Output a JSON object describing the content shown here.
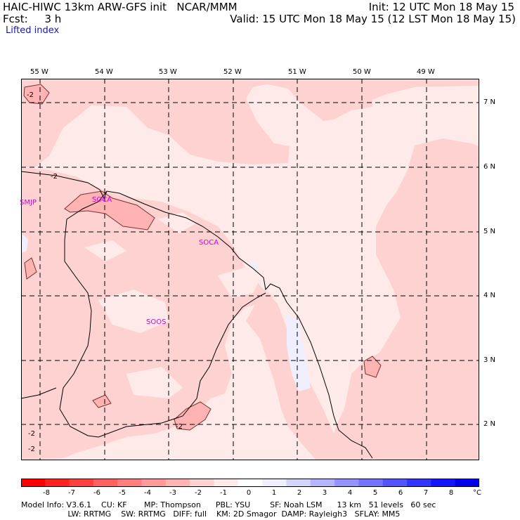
{
  "header": {
    "line1_left": "HAIC-HIWC 13km ARW-GFS init   NCAR/MMM",
    "line2_left": "Fcst:     3 h",
    "line1_right": "Init: 12 UTC Mon 18 May 15",
    "line2_right": "Valid: 15 UTC Mon 18 May 15 (12 LST Mon 18 May 15)",
    "field_label": "Lifted index"
  },
  "map": {
    "lon_labels": [
      "55 W",
      "54 W",
      "53 W",
      "52 W",
      "51 W",
      "50 W",
      "49 W"
    ],
    "lat_labels": [
      "7 N",
      "6 N",
      "5 N",
      "4 N",
      "3 N",
      "2 N"
    ],
    "stations": [
      "SMJP",
      "SOCA",
      "SOOS",
      "SOCA"
    ],
    "contour_labels": [
      "-2",
      "-2",
      "-2",
      "-2",
      "-2"
    ]
  },
  "colorbar": {
    "colors": [
      "#ff0000",
      "#ff2020",
      "#ff4040",
      "#ff6060",
      "#ff7f7f",
      "#ff9a9a",
      "#ffb3b3",
      "#ffd2d2",
      "#ffeaea",
      "#ffffff",
      "#efefff",
      "#d4d4ff",
      "#b4b4ff",
      "#9494ff",
      "#7474ff",
      "#5454ff",
      "#3434ff",
      "#1414ff",
      "#0000ee"
    ],
    "labels": [
      "-8",
      "-7",
      "-6",
      "-5",
      "-4",
      "-3",
      "-2",
      "-1",
      "0",
      "1",
      "2",
      "3",
      "4",
      "5",
      "6",
      "7",
      "8",
      "°C"
    ]
  },
  "footer": {
    "line1": "Model Info: V3.6.1    CU: KF       MP: Thompson      PBL: YSU        SF: Noah LSM      13 km   51 levels   60 sec",
    "line2": "                   LW: RRTMG    SW: RRTMG   DIFF: full    KM: 2D Smagor  DAMP: Rayleigh3   SFLAY: MM5"
  }
}
